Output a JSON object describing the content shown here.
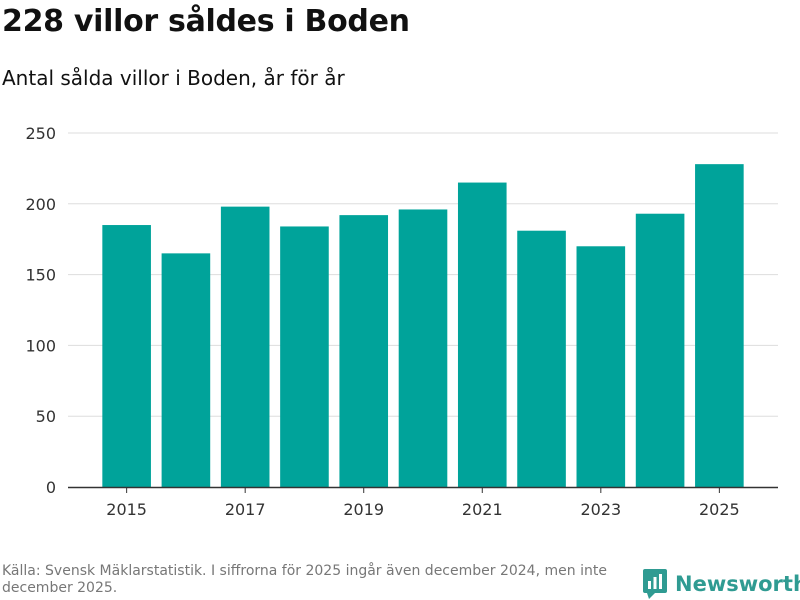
{
  "header": {
    "title": "228 villor såldes i Boden",
    "subtitle": "Antal sålda villor i Boden, år för år"
  },
  "footer": {
    "source": "Källa: Svensk Mäklarstatistik. I siffrorna för 2025 ingår även december 2024, men inte december 2025.",
    "logo_text": "Newsworthy"
  },
  "colors": {
    "bar": "#00a39a",
    "grid": "#dddddd",
    "axis": "#333333",
    "logo": "#2f9b92"
  },
  "chart_data": {
    "type": "bar",
    "title": "Antal sålda villor i Boden, år för år",
    "xlabel": "",
    "ylabel": "",
    "categories": [
      "2015",
      "2016",
      "2017",
      "2018",
      "2019",
      "2020",
      "2021",
      "2022",
      "2023",
      "2024",
      "2025"
    ],
    "values": [
      185,
      165,
      198,
      184,
      192,
      196,
      215,
      181,
      170,
      193,
      228
    ],
    "x_tick_labels": [
      "2015",
      "2017",
      "2019",
      "2021",
      "2023",
      "2025"
    ],
    "y_ticks": [
      0,
      50,
      100,
      150,
      200,
      250
    ],
    "ylim": [
      0,
      250
    ],
    "grid": true
  }
}
